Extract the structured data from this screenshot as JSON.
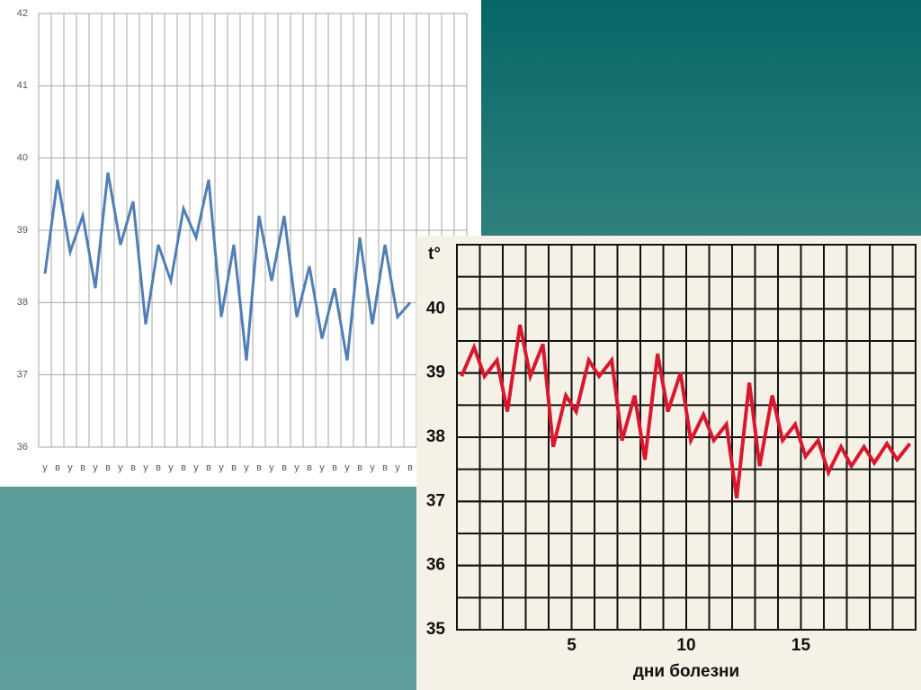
{
  "chart_data": [
    {
      "type": "line",
      "categories": [
        "у",
        "в",
        "у",
        "в",
        "у",
        "в",
        "у",
        "в",
        "у",
        "в",
        "у",
        "в",
        "у",
        "в",
        "у",
        "в",
        "у",
        "в",
        "у",
        "в",
        "у",
        "в",
        "у",
        "в",
        "у",
        "в",
        "у",
        "в",
        "у",
        "в"
      ],
      "values": [
        38.4,
        39.7,
        38.7,
        39.2,
        38.2,
        39.8,
        38.8,
        39.4,
        37.7,
        38.8,
        38.3,
        39.3,
        38.9,
        39.7,
        37.8,
        38.8,
        37.2,
        39.2,
        38.3,
        39.2,
        37.8,
        38.5,
        37.5,
        38.2,
        37.2,
        38.9,
        37.7,
        38.8,
        37.8,
        38.0
      ],
      "color": "#4f7fb5",
      "ylim": [
        36,
        42
      ],
      "yticks": [
        36,
        37,
        38,
        39,
        40,
        41,
        42
      ],
      "grid": true
    },
    {
      "type": "line",
      "x": [
        0.2,
        0.75,
        1.2,
        1.75,
        2.2,
        2.75,
        3.2,
        3.75,
        4.2,
        4.75,
        5.2,
        5.75,
        6.2,
        6.75,
        7.2,
        7.75,
        8.2,
        8.75,
        9.2,
        9.75,
        10.2,
        10.75,
        11.2,
        11.75,
        12.2,
        12.75,
        13.2,
        13.75,
        14.2,
        14.75,
        15.2,
        15.75,
        16.2,
        16.75,
        17.2,
        17.75,
        18.2,
        18.75,
        19.2,
        19.75
      ],
      "values": [
        38.95,
        39.4,
        38.95,
        39.2,
        38.4,
        39.75,
        38.95,
        39.45,
        37.85,
        38.65,
        38.4,
        39.2,
        38.95,
        39.2,
        37.95,
        38.65,
        37.65,
        39.3,
        38.4,
        39.0,
        37.95,
        38.35,
        37.95,
        38.2,
        37.05,
        38.85,
        37.55,
        38.65,
        37.95,
        38.2,
        37.7,
        37.95,
        37.45,
        37.85,
        37.55,
        37.85,
        37.6,
        37.9,
        37.65,
        37.9
      ],
      "color": "#d8182e",
      "xlim": [
        0,
        20
      ],
      "xticks": [
        5,
        10,
        15
      ],
      "ylim": [
        35,
        41
      ],
      "yticks": [
        35,
        36,
        37,
        38,
        39,
        40
      ],
      "y_label": "t°",
      "x_label": "дни болезни",
      "grid": true
    }
  ]
}
